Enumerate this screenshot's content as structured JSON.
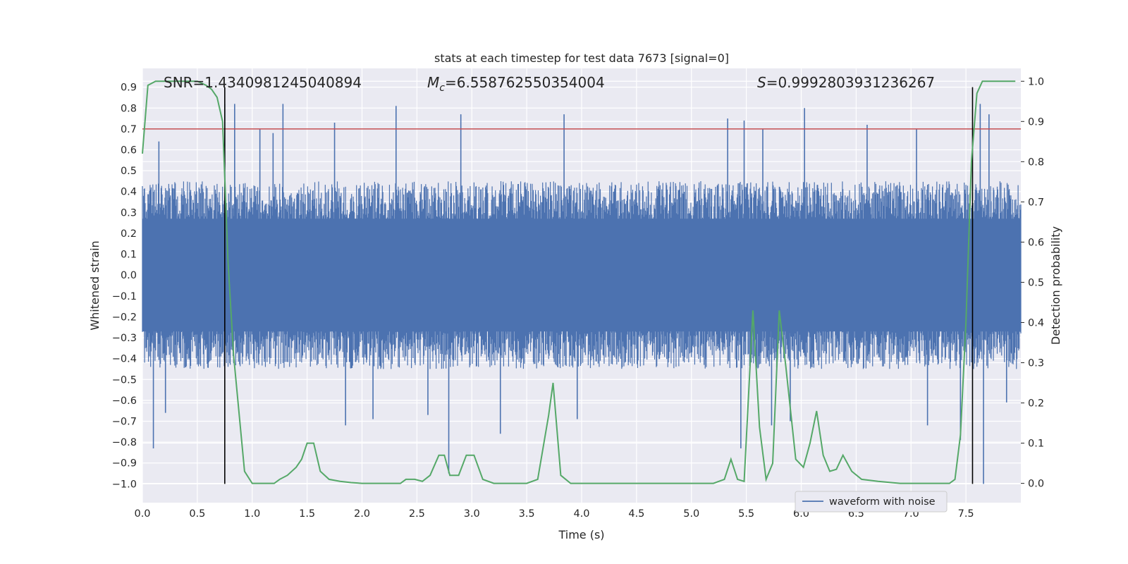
{
  "chart_data": {
    "type": "line",
    "title": "stats at each timestep for test data 7673 [signal=0]",
    "xlabel": "Time (s)",
    "ylabel": "Whitened strain",
    "y2label": "Detection probability",
    "xlim": [
      0.0,
      8.0
    ],
    "ylim": [
      -1.09,
      0.99
    ],
    "y2lim": [
      -0.048,
      1.032
    ],
    "xticks": [
      "0.0",
      "0.5",
      "1.0",
      "1.5",
      "2.0",
      "2.5",
      "3.0",
      "3.5",
      "4.0",
      "4.5",
      "5.0",
      "5.5",
      "6.0",
      "6.5",
      "7.0",
      "7.5"
    ],
    "yticks": [
      "0.9",
      "0.8",
      "0.7",
      "0.6",
      "0.5",
      "0.4",
      "0.3",
      "0.2",
      "0.1",
      "0.0",
      "−0.1",
      "−0.2",
      "−0.3",
      "−0.4",
      "−0.5",
      "−0.6",
      "−0.7",
      "−0.8",
      "−0.9",
      "−1.0"
    ],
    "y2ticks": [
      "1.0",
      "0.9",
      "0.8",
      "0.7",
      "0.6",
      "0.5",
      "0.4",
      "0.3",
      "0.2",
      "0.1",
      "0.0"
    ],
    "grid": true,
    "legend_position": "bottom-right",
    "annotations": {
      "snr": "SNR=1.4340981245040894",
      "mc_symbol": "M",
      "mc_subscript": "c",
      "mc_value": "=6.558762550354004",
      "s_symbol": "S",
      "s_value": "=0.9992803931236267"
    },
    "series": [
      {
        "name": "waveform with noise",
        "axis": "left",
        "color": "#4c72b0",
        "kind": "noise",
        "envelope": {
          "typical_max": 0.45,
          "typical_min": -0.45
        },
        "spikes": [
          {
            "x": 0.1,
            "y": -0.83
          },
          {
            "x": 0.15,
            "y": 0.64
          },
          {
            "x": 0.21,
            "y": -0.66
          },
          {
            "x": 0.75,
            "y": 0.82
          },
          {
            "x": 0.84,
            "y": 0.82
          },
          {
            "x": 1.07,
            "y": 0.7
          },
          {
            "x": 1.19,
            "y": 0.68
          },
          {
            "x": 1.28,
            "y": 0.82
          },
          {
            "x": 1.75,
            "y": 0.73
          },
          {
            "x": 1.85,
            "y": -0.72
          },
          {
            "x": 2.1,
            "y": -0.69
          },
          {
            "x": 2.31,
            "y": 0.81
          },
          {
            "x": 2.6,
            "y": -0.67
          },
          {
            "x": 2.79,
            "y": -0.95
          },
          {
            "x": 2.9,
            "y": 0.77
          },
          {
            "x": 3.26,
            "y": -0.76
          },
          {
            "x": 3.84,
            "y": 0.77
          },
          {
            "x": 3.96,
            "y": -0.69
          },
          {
            "x": 5.33,
            "y": 0.75
          },
          {
            "x": 5.45,
            "y": -0.83
          },
          {
            "x": 5.48,
            "y": 0.74
          },
          {
            "x": 5.65,
            "y": 0.7
          },
          {
            "x": 5.73,
            "y": -0.72
          },
          {
            "x": 5.9,
            "y": -0.7
          },
          {
            "x": 6.03,
            "y": 0.8
          },
          {
            "x": 6.6,
            "y": 0.72
          },
          {
            "x": 7.05,
            "y": 0.7
          },
          {
            "x": 7.15,
            "y": -0.72
          },
          {
            "x": 7.45,
            "y": -0.79
          },
          {
            "x": 7.63,
            "y": 0.82
          },
          {
            "x": 7.66,
            "y": -1.0
          },
          {
            "x": 7.71,
            "y": 0.77
          },
          {
            "x": 7.87,
            "y": -0.61
          }
        ]
      },
      {
        "name": "detection probability",
        "axis": "right",
        "color": "#55a868",
        "x": [
          0.0,
          0.05,
          0.12,
          0.2,
          0.3,
          0.4,
          0.5,
          0.58,
          0.63,
          0.68,
          0.73,
          0.78,
          0.83,
          0.93,
          1.0,
          1.1,
          1.2,
          1.25,
          1.32,
          1.4,
          1.45,
          1.5,
          1.56,
          1.62,
          1.7,
          1.8,
          1.9,
          2.0,
          2.1,
          2.2,
          2.3,
          2.35,
          2.4,
          2.48,
          2.55,
          2.62,
          2.7,
          2.75,
          2.8,
          2.88,
          2.95,
          3.02,
          3.1,
          3.2,
          3.3,
          3.4,
          3.5,
          3.6,
          3.7,
          3.74,
          3.81,
          3.9,
          4.0,
          4.1,
          4.3,
          4.5,
          4.7,
          5.0,
          5.2,
          5.3,
          5.36,
          5.42,
          5.48,
          5.56,
          5.62,
          5.68,
          5.74,
          5.8,
          5.86,
          5.95,
          6.02,
          6.08,
          6.14,
          6.2,
          6.26,
          6.32,
          6.38,
          6.46,
          6.55,
          6.7,
          6.9,
          7.1,
          7.3,
          7.35,
          7.4,
          7.45,
          7.5,
          7.55,
          7.6,
          7.65,
          7.7,
          7.75,
          7.85,
          7.95
        ],
        "y": [
          0.82,
          0.99,
          1.0,
          1.0,
          1.0,
          1.0,
          1.0,
          0.99,
          0.98,
          0.96,
          0.9,
          0.55,
          0.32,
          0.03,
          0.0,
          0.0,
          0.0,
          0.01,
          0.02,
          0.04,
          0.06,
          0.1,
          0.1,
          0.03,
          0.01,
          0.005,
          0.002,
          0.0,
          0.0,
          0.0,
          0.0,
          0.0,
          0.01,
          0.01,
          0.005,
          0.02,
          0.07,
          0.07,
          0.02,
          0.02,
          0.07,
          0.07,
          0.01,
          0.0,
          0.0,
          0.0,
          0.0,
          0.01,
          0.17,
          0.25,
          0.02,
          0.0,
          0.0,
          0.0,
          0.0,
          0.0,
          0.0,
          0.0,
          0.0,
          0.01,
          0.06,
          0.01,
          0.005,
          0.43,
          0.14,
          0.01,
          0.05,
          0.43,
          0.29,
          0.06,
          0.04,
          0.1,
          0.18,
          0.07,
          0.03,
          0.035,
          0.07,
          0.03,
          0.01,
          0.005,
          0.0,
          0.0,
          0.0,
          0.0,
          0.01,
          0.12,
          0.4,
          0.8,
          0.97,
          1.0,
          1.0,
          1.0,
          1.0,
          1.0
        ]
      }
    ],
    "thresholds": [
      {
        "axis": "left",
        "y": 0.7,
        "color": "#c44e52"
      }
    ],
    "markers": [
      {
        "axis": "x",
        "x": 0.75,
        "color": "#000000"
      },
      {
        "axis": "x",
        "x": 7.56,
        "color": "#000000"
      }
    ]
  }
}
